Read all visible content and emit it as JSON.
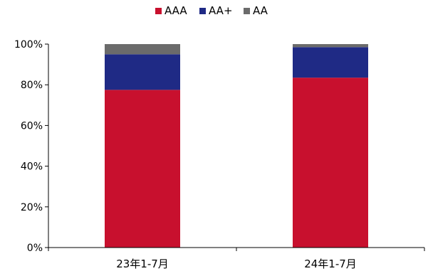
{
  "chart_data": {
    "type": "bar",
    "stacked": true,
    "categories": [
      "23年1-7月",
      "24年1-7月"
    ],
    "series": [
      {
        "name": "AAA",
        "color": "#c8102e",
        "values": [
          77.5,
          83.5
        ]
      },
      {
        "name": "AA+",
        "color": "#1f2a85",
        "values": [
          17.5,
          15.0
        ]
      },
      {
        "name": "AA",
        "color": "#6b6b6b",
        "values": [
          5.0,
          1.5
        ]
      }
    ],
    "ylim": [
      0,
      100
    ],
    "yticks": [
      "0%",
      "20%",
      "40%",
      "60%",
      "80%",
      "100%"
    ],
    "legend_position": "top-center",
    "grid": false
  }
}
